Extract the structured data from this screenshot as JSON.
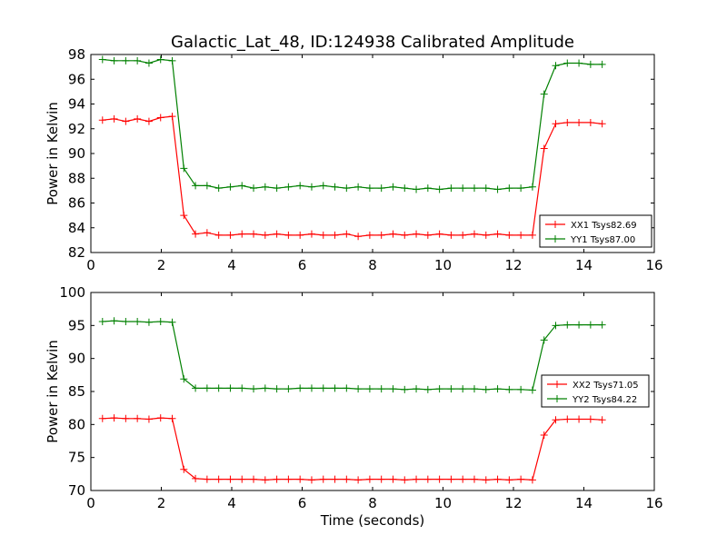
{
  "figure": {
    "title": "Galactic_Lat_48, ID:124938 Calibrated Amplitude"
  },
  "chart_data": [
    {
      "type": "line",
      "title": "Galactic_Lat_48, ID:124938 Calibrated Amplitude",
      "xlabel": "",
      "ylabel": "Power in Kelvin",
      "xlim": [
        0,
        16
      ],
      "ylim": [
        82,
        98
      ],
      "x_ticks": [
        0,
        2,
        4,
        6,
        8,
        10,
        12,
        14,
        16
      ],
      "y_ticks": [
        82,
        84,
        86,
        88,
        90,
        92,
        94,
        96,
        98
      ],
      "grid": false,
      "legend_position": "lower-right",
      "x": [
        0.33,
        0.66,
        0.99,
        1.32,
        1.65,
        1.98,
        2.31,
        2.64,
        2.97,
        3.3,
        3.63,
        3.96,
        4.29,
        4.62,
        4.95,
        5.28,
        5.61,
        5.94,
        6.27,
        6.6,
        6.93,
        7.26,
        7.59,
        7.92,
        8.25,
        8.58,
        8.91,
        9.24,
        9.57,
        9.9,
        10.23,
        10.56,
        10.89,
        11.22,
        11.55,
        11.88,
        12.21,
        12.54,
        12.87,
        13.2,
        13.53,
        13.86,
        14.19,
        14.52
      ],
      "series": [
        {
          "name": "XX1 Tsys82.69",
          "color": "#ff0000",
          "values": [
            92.7,
            92.8,
            92.6,
            92.8,
            92.6,
            92.9,
            93.0,
            85.0,
            83.5,
            83.6,
            83.4,
            83.4,
            83.5,
            83.5,
            83.4,
            83.5,
            83.4,
            83.4,
            83.5,
            83.4,
            83.4,
            83.5,
            83.3,
            83.4,
            83.4,
            83.5,
            83.4,
            83.5,
            83.4,
            83.5,
            83.4,
            83.4,
            83.5,
            83.4,
            83.5,
            83.4,
            83.4,
            83.4,
            90.4,
            92.4,
            92.5,
            92.5,
            92.5,
            92.4
          ]
        },
        {
          "name": "YY1 Tsys87.00",
          "color": "#008000",
          "values": [
            97.6,
            97.5,
            97.5,
            97.5,
            97.3,
            97.6,
            97.5,
            88.8,
            87.4,
            87.4,
            87.2,
            87.3,
            87.4,
            87.2,
            87.3,
            87.2,
            87.3,
            87.4,
            87.3,
            87.4,
            87.3,
            87.2,
            87.3,
            87.2,
            87.2,
            87.3,
            87.2,
            87.1,
            87.2,
            87.1,
            87.2,
            87.2,
            87.2,
            87.2,
            87.1,
            87.2,
            87.2,
            87.3,
            94.8,
            97.1,
            97.3,
            97.3,
            97.2,
            97.2
          ]
        }
      ]
    },
    {
      "type": "line",
      "title": "",
      "xlabel": "Time (seconds)",
      "ylabel": "Power in Kelvin",
      "xlim": [
        0,
        16
      ],
      "ylim": [
        70,
        100
      ],
      "x_ticks": [
        0,
        2,
        4,
        6,
        8,
        10,
        12,
        14,
        16
      ],
      "y_ticks": [
        70,
        75,
        80,
        85,
        90,
        95,
        100
      ],
      "grid": false,
      "legend_position": "center-right",
      "x": [
        0.33,
        0.66,
        0.99,
        1.32,
        1.65,
        1.98,
        2.31,
        2.64,
        2.97,
        3.3,
        3.63,
        3.96,
        4.29,
        4.62,
        4.95,
        5.28,
        5.61,
        5.94,
        6.27,
        6.6,
        6.93,
        7.26,
        7.59,
        7.92,
        8.25,
        8.58,
        8.91,
        9.24,
        9.57,
        9.9,
        10.23,
        10.56,
        10.89,
        11.22,
        11.55,
        11.88,
        12.21,
        12.54,
        12.87,
        13.2,
        13.53,
        13.86,
        14.19,
        14.52
      ],
      "series": [
        {
          "name": "XX2 Tsys71.05",
          "color": "#ff0000",
          "values": [
            80.9,
            81.0,
            80.9,
            80.9,
            80.8,
            81.0,
            80.9,
            73.2,
            71.8,
            71.7,
            71.7,
            71.7,
            71.7,
            71.7,
            71.6,
            71.7,
            71.7,
            71.7,
            71.6,
            71.7,
            71.7,
            71.7,
            71.6,
            71.7,
            71.7,
            71.7,
            71.6,
            71.7,
            71.7,
            71.7,
            71.7,
            71.7,
            71.7,
            71.6,
            71.7,
            71.6,
            71.7,
            71.6,
            78.4,
            80.7,
            80.8,
            80.8,
            80.8,
            80.7
          ]
        },
        {
          "name": "YY2 Tsys84.22",
          "color": "#008000",
          "values": [
            95.6,
            95.7,
            95.6,
            95.6,
            95.5,
            95.6,
            95.5,
            86.9,
            85.5,
            85.5,
            85.5,
            85.5,
            85.5,
            85.4,
            85.5,
            85.4,
            85.4,
            85.5,
            85.5,
            85.5,
            85.5,
            85.5,
            85.4,
            85.4,
            85.4,
            85.4,
            85.3,
            85.4,
            85.3,
            85.4,
            85.4,
            85.4,
            85.4,
            85.3,
            85.4,
            85.3,
            85.3,
            85.2,
            92.8,
            95.0,
            95.1,
            95.1,
            95.1,
            95.1
          ]
        }
      ]
    }
  ]
}
